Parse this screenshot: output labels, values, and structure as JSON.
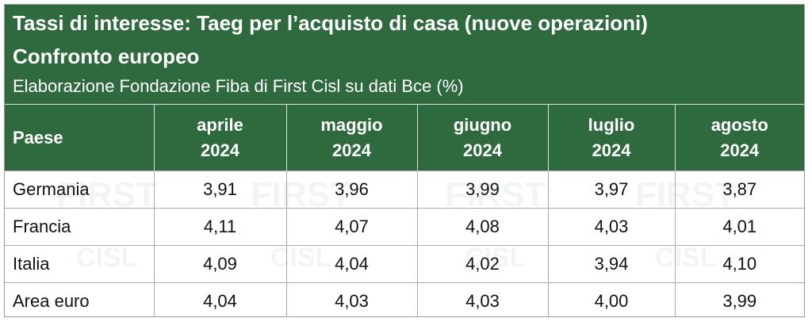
{
  "header": {
    "title_line1": "Tassi di interesse: Taeg per l’acquisto di casa (nuove operazioni)",
    "title_line2": "Confronto europeo",
    "subtitle": "Elaborazione Fondazione Fiba di First Cisl su dati Bce (%)"
  },
  "watermark": {
    "top": "FIRST",
    "logo": "CISL"
  },
  "table": {
    "columns": [
      {
        "lines": [
          "Paese"
        ]
      },
      {
        "lines": [
          "aprile",
          "2024"
        ]
      },
      {
        "lines": [
          "maggio",
          "2024"
        ]
      },
      {
        "lines": [
          "giugno",
          "2024"
        ]
      },
      {
        "lines": [
          "luglio",
          "2024"
        ]
      },
      {
        "lines": [
          "agosto",
          "2024"
        ]
      }
    ],
    "rows": [
      [
        "Germania",
        "3,91",
        "3,96",
        "3,99",
        "3,97",
        "3,87"
      ],
      [
        "Francia",
        "4,11",
        "4,07",
        "4,08",
        "4,03",
        "4,01"
      ],
      [
        "Italia",
        "4,09",
        "4,04",
        "4,02",
        "3,94",
        "4,10"
      ],
      [
        "Area euro",
        "4,04",
        "4,03",
        "4,03",
        "4,00",
        "3,99"
      ]
    ]
  }
}
